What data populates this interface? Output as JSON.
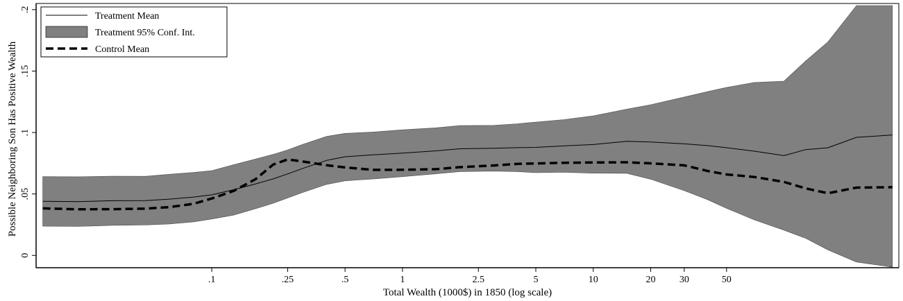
{
  "chart_data": {
    "type": "line",
    "title": "",
    "xlabel": "Total Wealth (1000$) in 1850 (log scale)",
    "ylabel": "Possible Neighboring Son Has Positive Wealth",
    "x_scale": "log",
    "xlim": [
      0.012,
      400
    ],
    "ylim": [
      -0.01,
      0.205
    ],
    "grid": false,
    "legend_position": "top-left",
    "x_ticks": [
      {
        "value": 0.1,
        "label": ".1"
      },
      {
        "value": 0.25,
        "label": ".25"
      },
      {
        "value": 0.5,
        "label": ".5"
      },
      {
        "value": 1,
        "label": "1"
      },
      {
        "value": 2.5,
        "label": "2.5"
      },
      {
        "value": 5,
        "label": "5"
      },
      {
        "value": 10,
        "label": "10"
      },
      {
        "value": 20,
        "label": "20"
      },
      {
        "value": 30,
        "label": "30"
      },
      {
        "value": 50,
        "label": "50"
      }
    ],
    "y_ticks": [
      {
        "value": 0,
        "label": "0"
      },
      {
        "value": 0.05,
        "label": ".05"
      },
      {
        "value": 0.1,
        "label": ".1"
      },
      {
        "value": 0.15,
        "label": ".15"
      },
      {
        "value": 0.2,
        "label": ".2"
      }
    ],
    "x": [
      0.013,
      0.02,
      0.03,
      0.045,
      0.06,
      0.08,
      0.1,
      0.13,
      0.17,
      0.21,
      0.25,
      0.3,
      0.4,
      0.5,
      0.7,
      1,
      1.5,
      2,
      3,
      4,
      5,
      7,
      10,
      15,
      20,
      30,
      40,
      50,
      70,
      100,
      130,
      170,
      240,
      370
    ],
    "series": [
      {
        "name": "Treatment Mean",
        "style": "line",
        "color": "#000000",
        "values": [
          0.044,
          0.0438,
          0.0445,
          0.0446,
          0.0458,
          0.0474,
          0.0493,
          0.0534,
          0.0582,
          0.0623,
          0.0663,
          0.0708,
          0.0773,
          0.0803,
          0.0818,
          0.0833,
          0.0851,
          0.0868,
          0.0872,
          0.0877,
          0.0879,
          0.0891,
          0.0902,
          0.0929,
          0.0923,
          0.0908,
          0.0893,
          0.0876,
          0.0848,
          0.0812,
          0.0861,
          0.0876,
          0.0961,
          0.098
        ]
      },
      {
        "name": "Treatment 95% Conf. Int.",
        "style": "band",
        "color": "#808080",
        "lower": [
          0.0238,
          0.0236,
          0.0245,
          0.0248,
          0.0256,
          0.0273,
          0.0296,
          0.0328,
          0.0381,
          0.0424,
          0.0467,
          0.0512,
          0.0578,
          0.0607,
          0.0622,
          0.0641,
          0.0664,
          0.0682,
          0.0686,
          0.0682,
          0.0673,
          0.0677,
          0.0669,
          0.0668,
          0.062,
          0.0527,
          0.0452,
          0.0383,
          0.0289,
          0.0206,
          0.0139,
          0.0045,
          -0.0054,
          -0.0095
        ],
        "upper": [
          0.0641,
          0.064,
          0.0645,
          0.0644,
          0.066,
          0.0675,
          0.069,
          0.0738,
          0.0784,
          0.0822,
          0.0859,
          0.0904,
          0.0968,
          0.0993,
          0.1004,
          0.1022,
          0.1038,
          0.1056,
          0.1058,
          0.1071,
          0.1085,
          0.1105,
          0.1135,
          0.119,
          0.1226,
          0.1289,
          0.1334,
          0.1367,
          0.1407,
          0.1418,
          0.1583,
          0.1738,
          0.2033,
          0.2033
        ]
      },
      {
        "name": "Control Mean",
        "style": "dashed",
        "color": "#000000",
        "values": [
          0.0383,
          0.0375,
          0.0376,
          0.0381,
          0.0393,
          0.0419,
          0.0463,
          0.0524,
          0.0621,
          0.0739,
          0.0781,
          0.0764,
          0.0734,
          0.0716,
          0.0696,
          0.0697,
          0.0702,
          0.0718,
          0.0732,
          0.0745,
          0.0748,
          0.0754,
          0.0756,
          0.0758,
          0.0749,
          0.0733,
          0.0686,
          0.0659,
          0.0638,
          0.0598,
          0.0545,
          0.0506,
          0.0552,
          0.0555
        ]
      }
    ]
  }
}
